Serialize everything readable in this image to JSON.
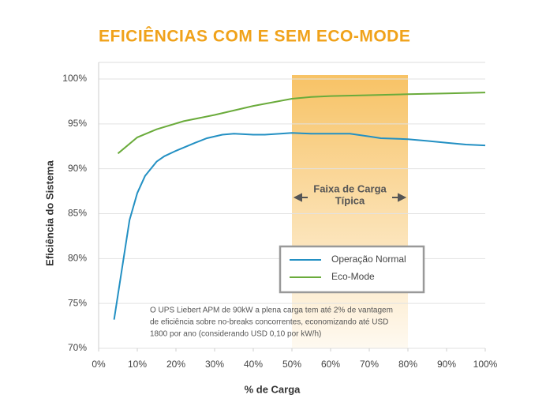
{
  "chart_data": {
    "type": "line",
    "title": "EFICIÊNCIAS COM E SEM ECO-MODE",
    "x_label": "% de Carga",
    "y_label": "Eficiência do Sistema",
    "xlim": [
      0,
      100
    ],
    "ylim": [
      70,
      100
    ],
    "xticks": [
      {
        "value": 0,
        "label": "0%"
      },
      {
        "value": 10,
        "label": "10%"
      },
      {
        "value": 20,
        "label": "20%"
      },
      {
        "value": 30,
        "label": "30%"
      },
      {
        "value": 40,
        "label": "40%"
      },
      {
        "value": 50,
        "label": "50%"
      },
      {
        "value": 60,
        "label": "60%"
      },
      {
        "value": 70,
        "label": "70%"
      },
      {
        "value": 80,
        "label": "80%"
      },
      {
        "value": 90,
        "label": "90%"
      },
      {
        "value": 100,
        "label": "100%"
      }
    ],
    "yticks": [
      {
        "value": 70,
        "label": "70%"
      },
      {
        "value": 75,
        "label": "75%"
      },
      {
        "value": 80,
        "label": "80%"
      },
      {
        "value": 85,
        "label": "85%"
      },
      {
        "value": 90,
        "label": "90%"
      },
      {
        "value": 95,
        "label": "95%"
      },
      {
        "value": 100,
        "label": "100%"
      }
    ],
    "grid": true,
    "legend_position": "lower right",
    "highlight": {
      "xlim": [
        50,
        80
      ],
      "color": "#f6b84a",
      "label": [
        "Faixa de Carga",
        "Típica"
      ]
    },
    "note": [
      "O UPS Liebert APM de 90kW a plena carga tem até 2% de vantagem",
      "de eficiência sobre no-breaks concorrentes, economizando até USD",
      "1800 por ano (considerando USD 0,10 por kW/h)"
    ],
    "series": [
      {
        "name": "Operação Normal",
        "color": "#2390c3",
        "x": [
          4,
          8,
          10,
          12,
          15,
          17,
          20,
          25,
          28,
          32,
          35,
          40,
          43,
          47,
          50,
          55,
          60,
          65,
          70,
          73,
          80,
          85,
          90,
          95,
          100
        ],
        "values": [
          73.2,
          84.3,
          87.3,
          89.2,
          90.8,
          91.4,
          92.0,
          92.9,
          93.4,
          93.8,
          93.9,
          93.8,
          93.8,
          93.9,
          94.0,
          93.9,
          93.9,
          93.9,
          93.6,
          93.4,
          93.3,
          93.1,
          92.9,
          92.7,
          92.6
        ]
      },
      {
        "name": "Eco-Mode",
        "color": "#6aab3b",
        "x": [
          5,
          10,
          15,
          22,
          30,
          40,
          50,
          55,
          60,
          70,
          80,
          90,
          100
        ],
        "values": [
          91.7,
          93.5,
          94.4,
          95.3,
          96.0,
          97.0,
          97.8,
          98.0,
          98.1,
          98.2,
          98.3,
          98.4,
          98.5
        ]
      }
    ]
  }
}
